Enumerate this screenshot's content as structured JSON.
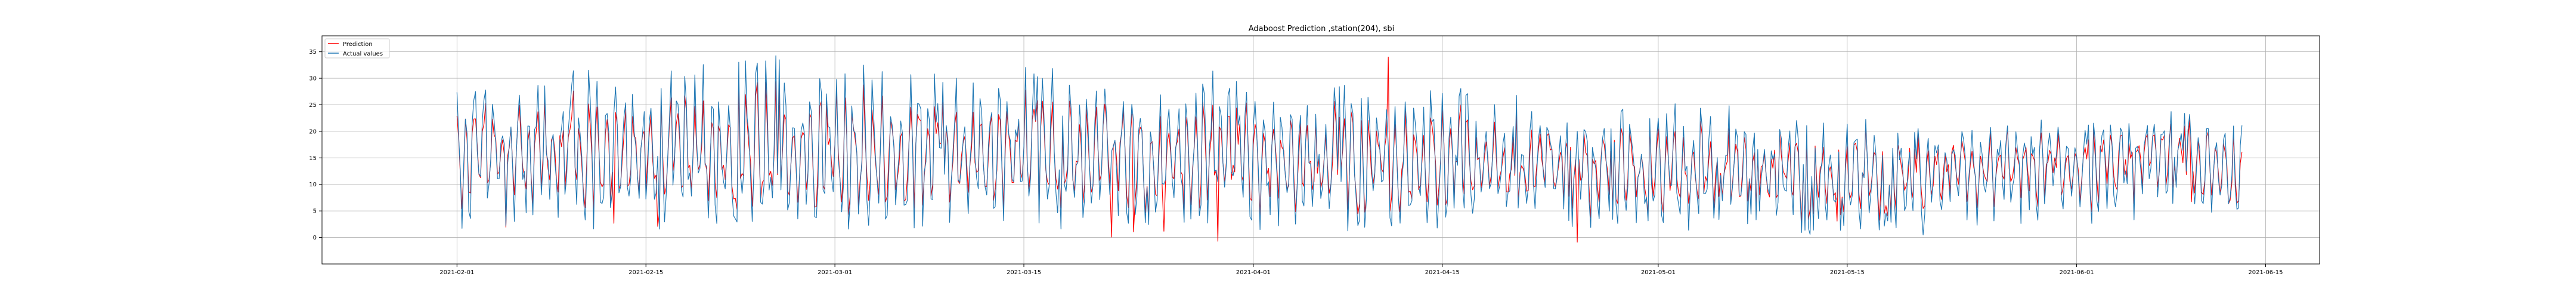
{
  "chart_data": {
    "type": "line",
    "title": "Adaboost Prediction ,station(204), sbi",
    "xlabel": "",
    "ylabel": "",
    "x_range": [
      "2021-02-01",
      "2021-06-15"
    ],
    "xlim": [
      "2021-01-22",
      "2021-06-19"
    ],
    "ylim": [
      -5,
      38
    ],
    "x_ticks": [
      "2021-02-01",
      "2021-02-15",
      "2021-03-01",
      "2021-03-15",
      "2021-04-01",
      "2021-04-15",
      "2021-05-01",
      "2021-05-15",
      "2021-06-01",
      "2021-06-15"
    ],
    "y_ticks": [
      0,
      5,
      10,
      15,
      20,
      25,
      30,
      35
    ],
    "grid": true,
    "legend_position": "top-left",
    "series": [
      {
        "name": "Prediction",
        "color": "#ff0000",
        "x": [
          "2021-02-01",
          "2021-02-08",
          "2021-02-15",
          "2021-02-22",
          "2021-03-01",
          "2021-03-08",
          "2021-03-15",
          "2021-03-22",
          "2021-04-01",
          "2021-04-08",
          "2021-04-15",
          "2021-04-22",
          "2021-05-01",
          "2021-05-08",
          "2021-05-15",
          "2021-05-22",
          "2021-06-01",
          "2021-06-08",
          "2021-06-13"
        ],
        "values": [
          16,
          15,
          16,
          15,
          16,
          15,
          15,
          15,
          14,
          14,
          13,
          13,
          13,
          13,
          12,
          13,
          14,
          16,
          10
        ],
        "range_low": [
          -1,
          2,
          0,
          1,
          0,
          1,
          0,
          0,
          -1,
          0,
          0,
          -2,
          -2,
          -1,
          2,
          1,
          3,
          6,
          6
        ],
        "range_high": [
          28,
          30,
          29,
          29,
          30,
          29,
          28,
          28,
          28,
          28,
          34,
          27,
          26,
          26,
          24,
          22,
          23,
          24,
          22
        ]
      },
      {
        "name": "Actual values",
        "color": "#1f77b4",
        "x": [
          "2021-02-01",
          "2021-02-08",
          "2021-02-15",
          "2021-02-22",
          "2021-03-01",
          "2021-03-08",
          "2021-03-15",
          "2021-03-22",
          "2021-04-01",
          "2021-04-08",
          "2021-04-15",
          "2021-04-22",
          "2021-05-01",
          "2021-05-08",
          "2021-05-15",
          "2021-05-22",
          "2021-06-01",
          "2021-06-08",
          "2021-06-13"
        ],
        "values": [
          16,
          15,
          16,
          15,
          17,
          15,
          15,
          15,
          14,
          14,
          13,
          13,
          13,
          13,
          11,
          13,
          14,
          16,
          8
        ],
        "range_low": [
          1,
          2,
          0,
          1,
          1,
          1,
          1,
          1,
          1,
          1,
          1,
          1,
          1,
          1,
          0,
          0,
          2,
          4,
          4
        ],
        "range_high": [
          31,
          33,
          31,
          34,
          36,
          32,
          33,
          31,
          32,
          30,
          29,
          27,
          26,
          25,
          23,
          20,
          23,
          24,
          22
        ]
      }
    ]
  }
}
